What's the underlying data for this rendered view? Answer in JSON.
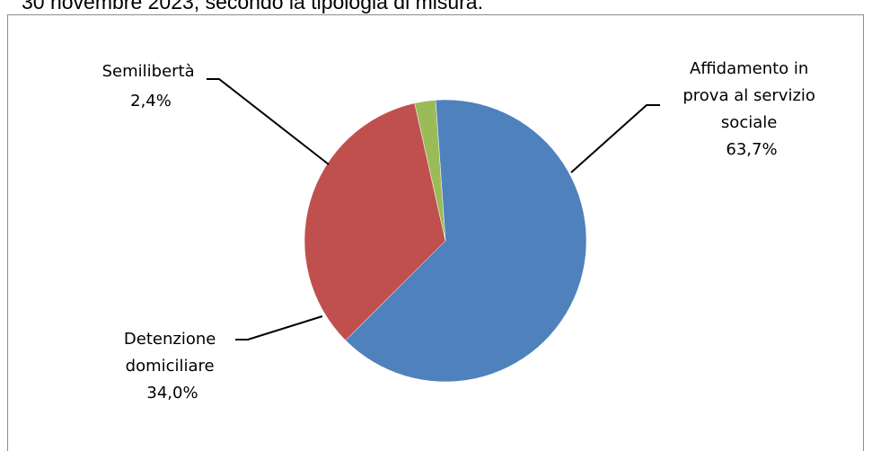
{
  "caption": "30 novembre 2023, secondo la tipologia di misura.",
  "chart_data": {
    "type": "pie",
    "categories": [
      "Affidamento in prova al servizio sociale",
      "Detenzione domiciliare",
      "Semilibertà"
    ],
    "values": [
      63.7,
      34.0,
      2.4
    ],
    "colors": [
      "#4f81bd",
      "#c0504d",
      "#9bbb59"
    ],
    "labels": [
      {
        "lines": [
          "Affidamento in",
          "prova al servizio",
          "sociale"
        ],
        "value": "63,7%"
      },
      {
        "lines": [
          "Detenzione",
          "domiciliare"
        ],
        "value": "34,0%"
      },
      {
        "lines": [
          "Semilibertà"
        ],
        "value": "2,4%"
      }
    ]
  }
}
